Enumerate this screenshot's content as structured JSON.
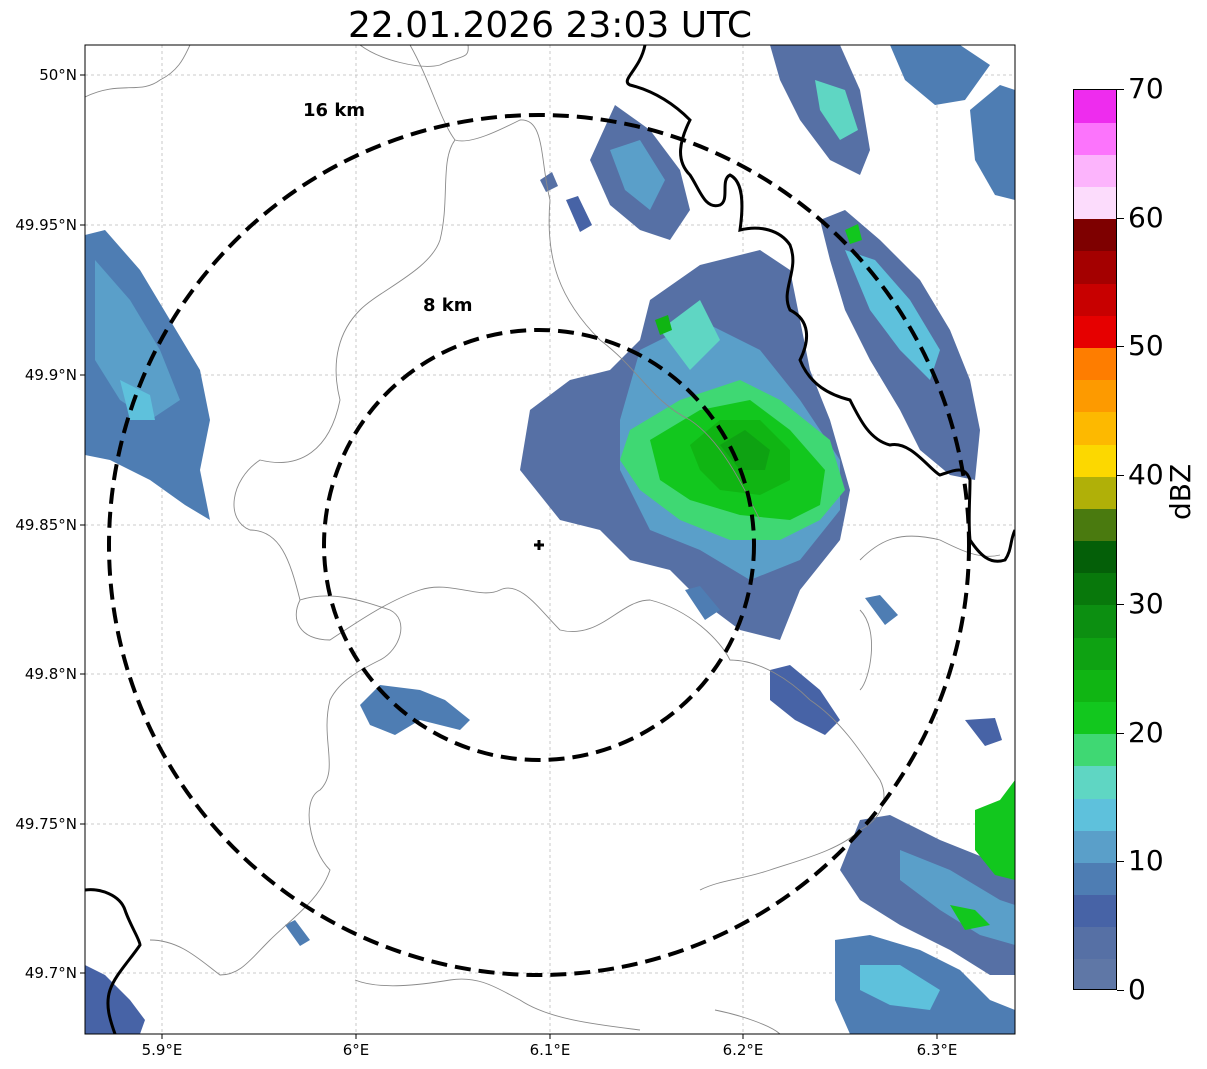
{
  "title": "22.01.2026 23:03 UTC",
  "map": {
    "lon_range": [
      5.86,
      6.34
    ],
    "lat_range": [
      49.68,
      50.01
    ],
    "center": {
      "lon": 6.095,
      "lat": 49.843
    },
    "grid": true,
    "y_ticks": [
      "50°N",
      "49.95°N",
      "49.9°N",
      "49.85°N",
      "49.8°N",
      "49.75°N",
      "49.7°N"
    ],
    "x_ticks": [
      "5.9°E",
      "6°E",
      "6.1°E",
      "6.2°E",
      "6.3°E"
    ],
    "range_rings": [
      {
        "label": "8 km",
        "radius_km": 8
      },
      {
        "label": "16 km",
        "radius_km": 16
      }
    ],
    "center_marker": "+",
    "line_colors": {
      "border": "#000000",
      "admin": "#8a8a8a",
      "grid": "#bbbbbb"
    }
  },
  "colorbar": {
    "label": "dBZ",
    "tick_labels": [
      "0",
      "10",
      "20",
      "30",
      "40",
      "50",
      "60",
      "70"
    ],
    "min": 0,
    "max": 70,
    "step": 2.5,
    "colors": [
      "#5f77a6",
      "#5670a5",
      "#4763a6",
      "#4e7db3",
      "#5a9fc9",
      "#5ec1dc",
      "#5fd6c3",
      "#3fd873",
      "#12c71e",
      "#10b513",
      "#0ea212",
      "#0c8f11",
      "#08780b",
      "#045f08",
      "#4a7a0f",
      "#b0b008",
      "#fcd800",
      "#fdb900",
      "#fd9a00",
      "#fe7d00",
      "#e60000",
      "#c80000",
      "#a40000",
      "#7e0000",
      "#fcdcfc",
      "#fcb4fc",
      "#fc74fc",
      "#ee2cee"
    ]
  }
}
